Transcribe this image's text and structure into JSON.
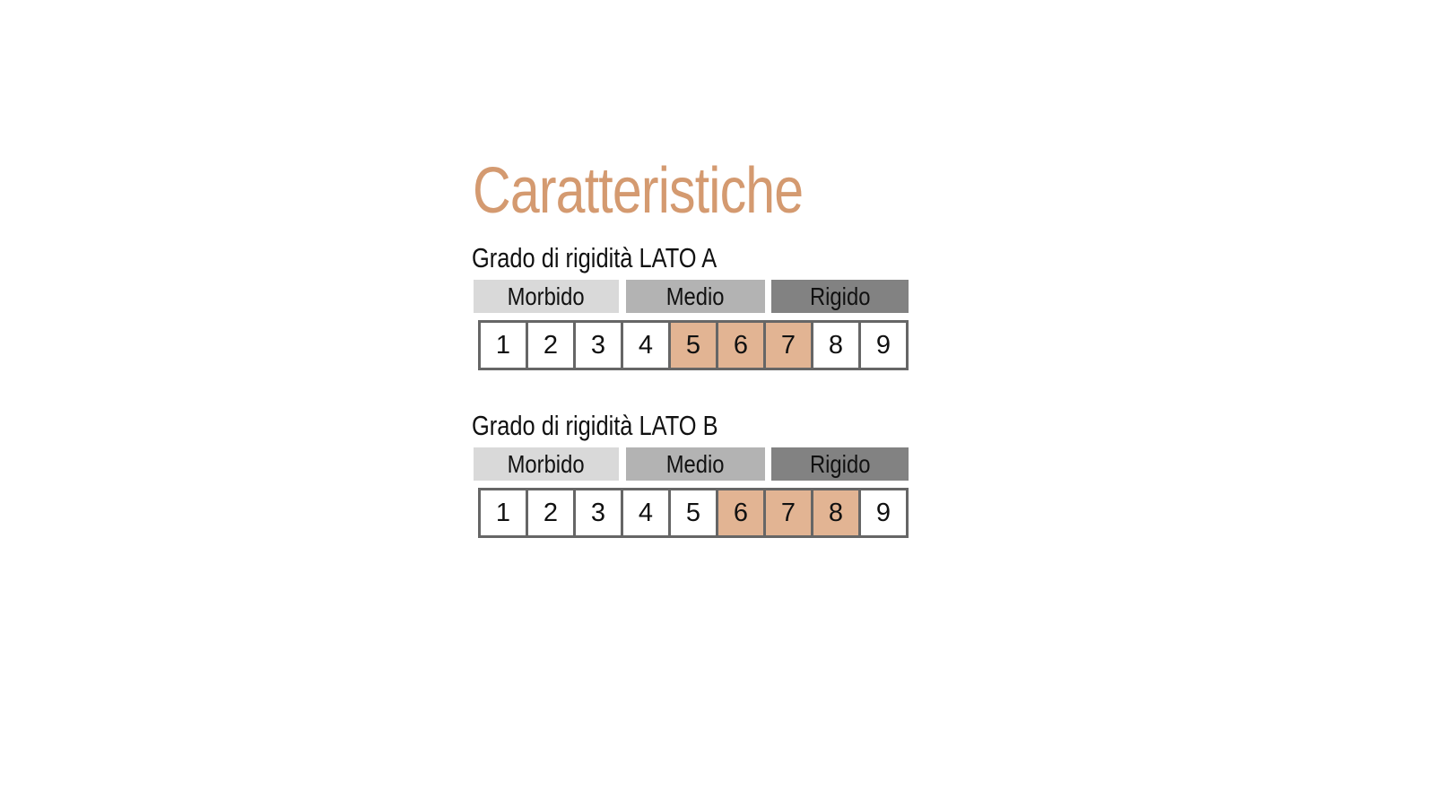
{
  "title": "Caratteristiche",
  "colors": {
    "title": "#d49a70",
    "highlight": "#e2b493",
    "morbido": "#d9d9d9",
    "medio": "#b3b3b3",
    "rigido": "#828282"
  },
  "sections": [
    {
      "label": "Grado di rigidità LATO A",
      "categories": [
        "Morbido",
        "Medio",
        "Rigido"
      ],
      "levels": [
        "1",
        "2",
        "3",
        "4",
        "5",
        "6",
        "7",
        "8",
        "9"
      ],
      "highlighted": [
        5,
        6,
        7
      ]
    },
    {
      "label": "Grado di rigidità LATO B",
      "categories": [
        "Morbido",
        "Medio",
        "Rigido"
      ],
      "levels": [
        "1",
        "2",
        "3",
        "4",
        "5",
        "6",
        "7",
        "8",
        "9"
      ],
      "highlighted": [
        6,
        7,
        8
      ]
    }
  ]
}
